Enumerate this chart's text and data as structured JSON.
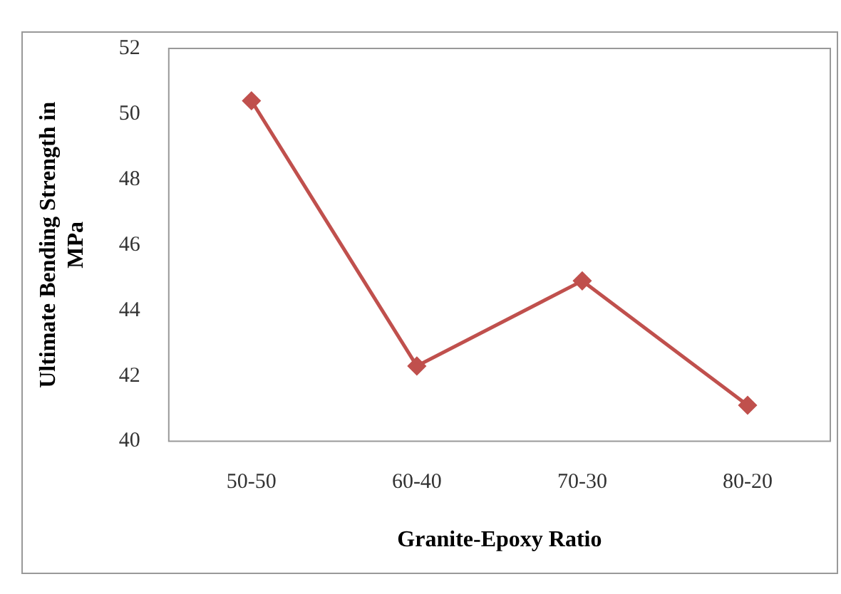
{
  "chart_data": {
    "type": "line",
    "xlabel": "Granite-Epoxy Ratio",
    "ylabel": "Ultimate Bending Strength in MPa",
    "categories": [
      "50-50",
      "60-40",
      "70-30",
      "80-20"
    ],
    "series": [
      {
        "color": "#c0504d",
        "values": [
          50.4,
          42.3,
          44.9,
          41.1
        ]
      }
    ],
    "ylim": [
      40,
      52
    ],
    "yticks": [
      40,
      42,
      44,
      46,
      48,
      50,
      52
    ],
    "grid": false,
    "legend": false,
    "marker": "diamond",
    "line_style": "solid"
  }
}
